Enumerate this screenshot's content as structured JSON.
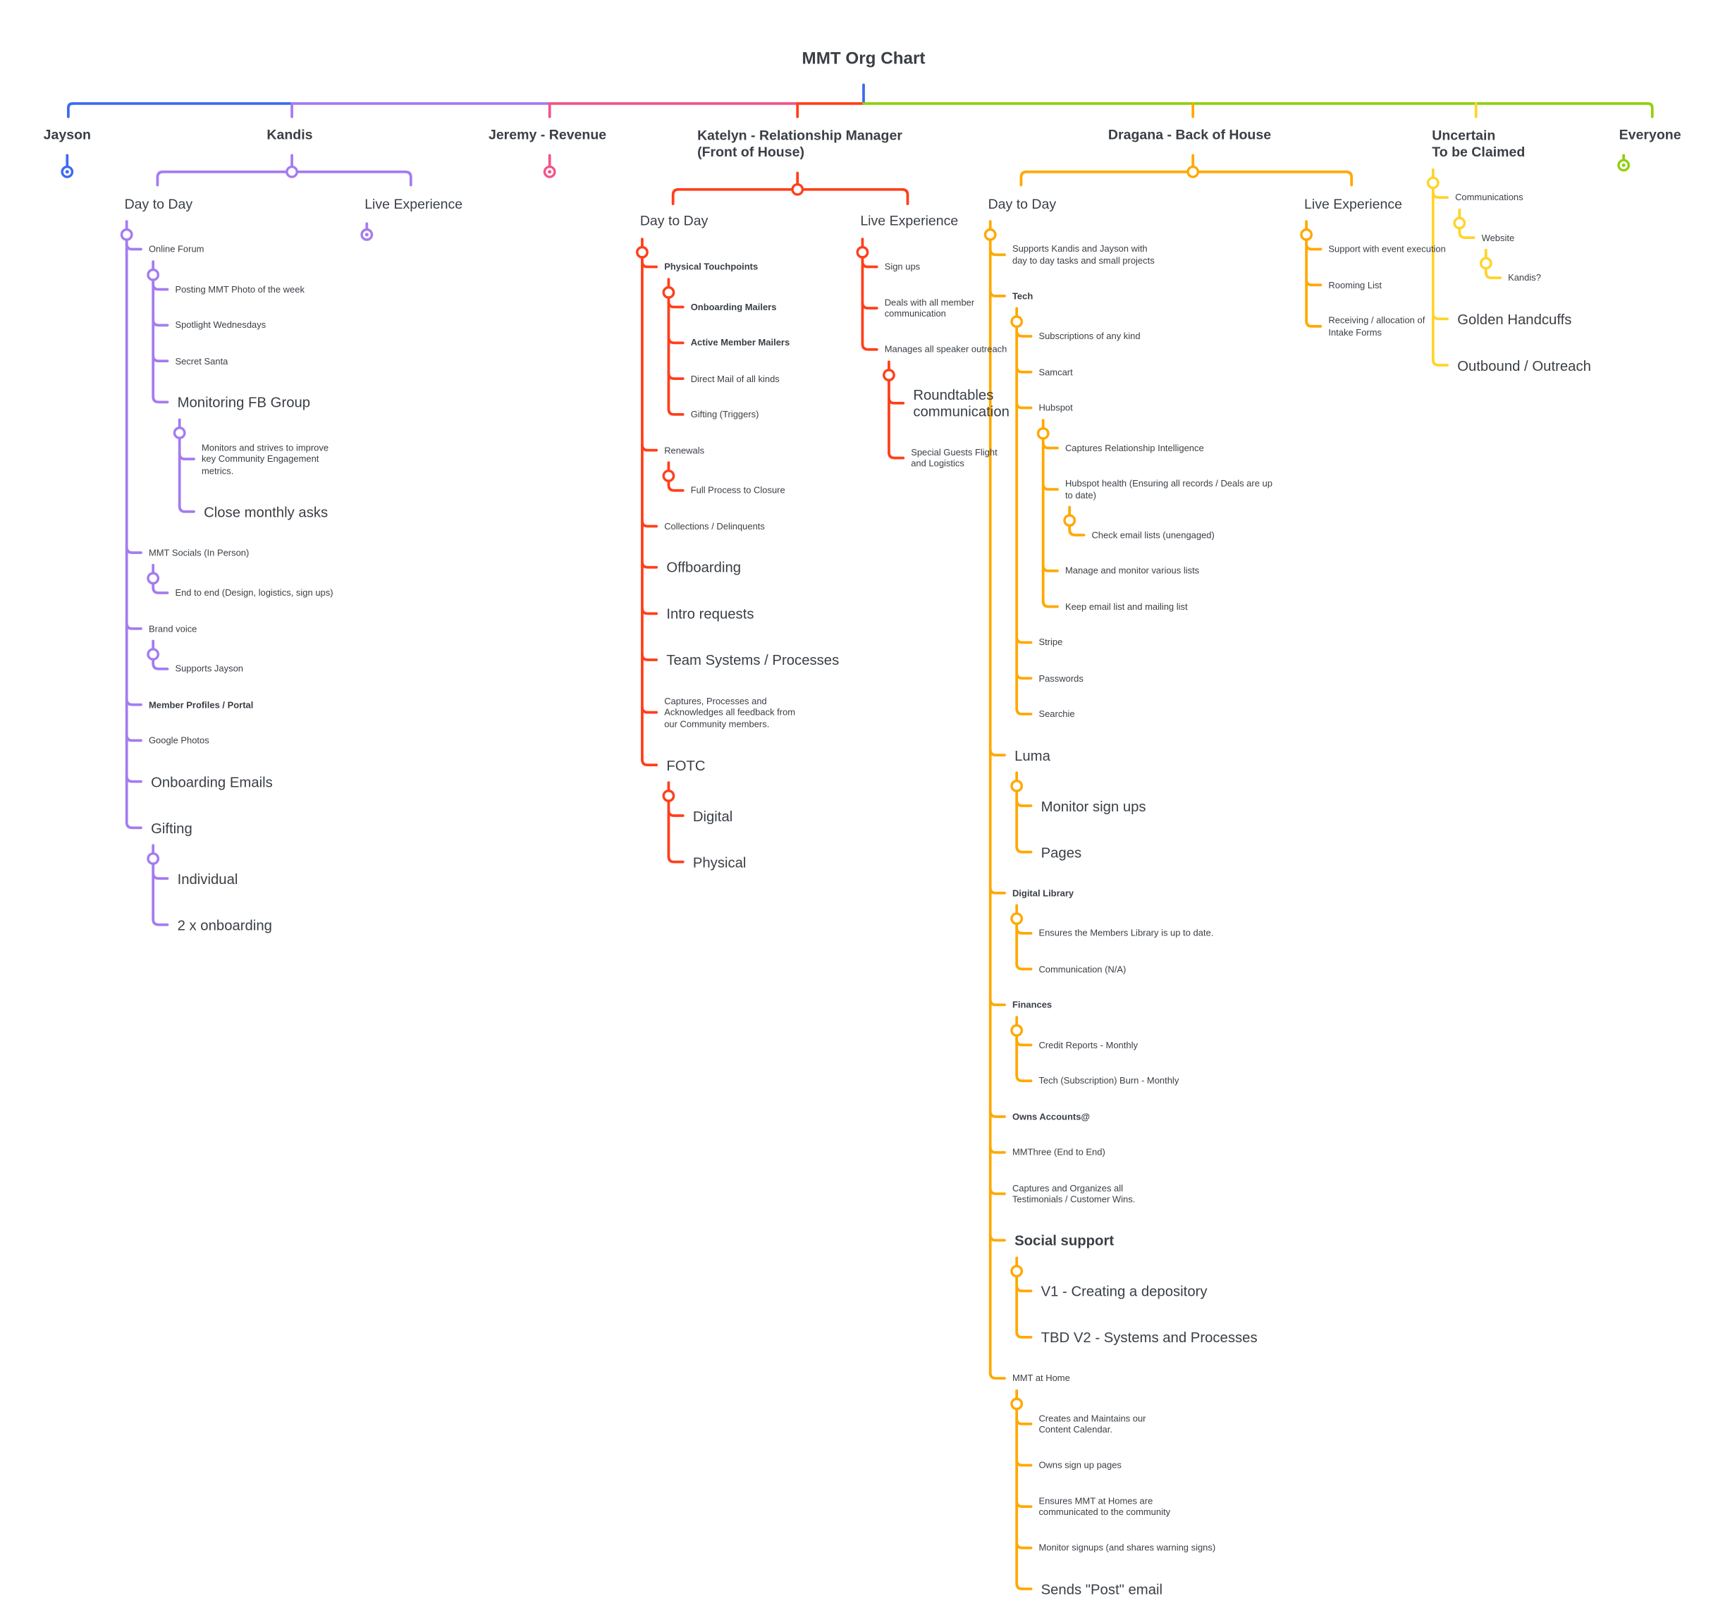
{
  "title": "MMT Org Chart",
  "colors": {
    "jayson": "#3d6af2",
    "kandis": "#a47cf0",
    "jeremy": "#f2558a",
    "katelyn": "#ff3f1a",
    "dragana": "#ffa800",
    "uncertain": "#ffd42a",
    "everyone": "#8ed10f",
    "text": "#3a3f45"
  },
  "columns": {
    "jayson": {
      "name": "Jayson"
    },
    "kandis": {
      "name": "Kandis",
      "day_to_day": {
        "label": "Day to Day",
        "items": [
          {
            "text": "Online Forum",
            "children": [
              {
                "text": "Posting MMT Photo of the week"
              },
              {
                "text": "Spotlight Wednesdays"
              },
              {
                "text": "Secret Santa"
              },
              {
                "text": "Monitoring FB Group",
                "size": "large",
                "children": [
                  {
                    "text": "Monitors and strives to improve\nkey Community Engagement\nmetrics."
                  },
                  {
                    "text": "Close monthly asks",
                    "size": "large"
                  }
                ]
              }
            ]
          },
          {
            "text": "MMT Socials (In Person)",
            "children": [
              {
                "text": "End to end (Design, logistics, sign ups)"
              }
            ]
          },
          {
            "text": "Brand voice",
            "children": [
              {
                "text": "Supports Jayson"
              }
            ]
          },
          {
            "text": "Member Profiles / Portal",
            "bold": true
          },
          {
            "text": "Google Photos"
          },
          {
            "text": "Onboarding Emails",
            "size": "large"
          },
          {
            "text": "Gifting",
            "size": "large",
            "children": [
              {
                "text": "Individual",
                "size": "large"
              },
              {
                "text": "2 x onboarding",
                "size": "large"
              }
            ]
          }
        ]
      },
      "live_experience": {
        "label": "Live Experience",
        "items": []
      }
    },
    "jeremy": {
      "name": "Jeremy - Revenue"
    },
    "katelyn": {
      "name": "Katelyn - Relationship Manager\n(Front of House)",
      "day_to_day": {
        "label": "Day to Day",
        "items": [
          {
            "text": "Physical Touchpoints",
            "bold": true,
            "children": [
              {
                "text": "Onboarding Mailers",
                "bold": true
              },
              {
                "text": "Active Member Mailers",
                "bold": true
              },
              {
                "text": "Direct Mail of all kinds"
              },
              {
                "text": "Gifting (Triggers)"
              }
            ]
          },
          {
            "text": "Renewals",
            "children": [
              {
                "text": "Full Process to Closure"
              }
            ]
          },
          {
            "text": "Collections / Delinquents"
          },
          {
            "text": "Offboarding",
            "size": "large"
          },
          {
            "text": "Intro requests",
            "size": "large"
          },
          {
            "text": "Team Systems / Processes",
            "size": "large"
          },
          {
            "text": "Captures, Processes and\nAcknowledges all feedback from\nour Community members."
          },
          {
            "text": "FOTC",
            "size": "large",
            "children": [
              {
                "text": "Digital",
                "size": "large"
              },
              {
                "text": "Physical",
                "size": "large"
              }
            ]
          }
        ]
      },
      "live_experience": {
        "label": "Live Experience",
        "items": [
          {
            "text": "Sign ups"
          },
          {
            "text": "Deals with all member communication"
          },
          {
            "text": "Manages all speaker outreach",
            "children": [
              {
                "text": "Roundtables communication",
                "size": "large"
              },
              {
                "text": "Special Guests Flight and Logistics"
              }
            ]
          }
        ]
      }
    },
    "dragana": {
      "name": "Dragana - Back of House",
      "day_to_day": {
        "label": "Day to Day",
        "items": [
          {
            "text": "Supports Kandis and Jayson with\nday to day tasks and small projects"
          },
          {
            "text": "Tech",
            "bold": true,
            "children": [
              {
                "text": "Subscriptions of any kind"
              },
              {
                "text": "Samcart"
              },
              {
                "text": "Hubspot",
                "children": [
                  {
                    "text": "Captures Relationship Intelligence"
                  },
                  {
                    "text": "Hubspot health (Ensuring all records / Deals are up\nto date)",
                    "children": [
                      {
                        "text": "Check email lists (unengaged)"
                      }
                    ]
                  },
                  {
                    "text": "Manage and monitor various lists"
                  },
                  {
                    "text": "Keep email list and mailing list"
                  }
                ]
              },
              {
                "text": "Stripe"
              },
              {
                "text": "Passwords"
              },
              {
                "text": "Searchie"
              }
            ]
          },
          {
            "text": "Luma",
            "size": "large",
            "children": [
              {
                "text": "Monitor sign ups",
                "size": "large"
              },
              {
                "text": "Pages",
                "size": "large"
              }
            ]
          },
          {
            "text": "Digital Library",
            "bold": true,
            "children": [
              {
                "text": "Ensures the Members Library is up to date."
              },
              {
                "text": "Communication (N/A)"
              }
            ]
          },
          {
            "text": "Finances",
            "bold": true,
            "children": [
              {
                "text": "Credit Reports - Monthly"
              },
              {
                "text": "Tech (Subscription) Burn - Monthly"
              }
            ]
          },
          {
            "text": "Owns Accounts@",
            "bold": true
          },
          {
            "text": "MMThree (End to End)"
          },
          {
            "text": "Captures and Organizes all\nTestimonials / Customer Wins."
          },
          {
            "text": "Social support",
            "size": "large",
            "bold": true,
            "children": [
              {
                "text": "V1 - Creating a depository",
                "size": "large"
              },
              {
                "text": "TBD V2 - Systems and Processes",
                "size": "large"
              }
            ]
          },
          {
            "text": "MMT at Home",
            "children": [
              {
                "text": "Creates and Maintains our\nContent Calendar."
              },
              {
                "text": "Owns sign up pages"
              },
              {
                "text": "Ensures MMT at Homes are\ncommunicated to the community"
              },
              {
                "text": "Monitor signups (and shares warning signs)"
              },
              {
                "text": "Sends \"Post\" email",
                "size": "large"
              }
            ]
          }
        ]
      },
      "live_experience": {
        "label": "Live Experience",
        "items": [
          {
            "text": "Support with event execution"
          },
          {
            "text": "Rooming List"
          },
          {
            "text": "Receiving / allocation of Intake Forms"
          }
        ]
      }
    },
    "uncertain": {
      "name": "Uncertain\nTo be Claimed",
      "items": [
        {
          "text": "Communications",
          "children": [
            {
              "text": "Website",
              "children": [
                {
                  "text": "Kandis?"
                }
              ]
            }
          ]
        },
        {
          "text": "Golden Handcuffs",
          "size": "large"
        },
        {
          "text": "Outbound / Outreach",
          "size": "large"
        }
      ]
    },
    "everyone": {
      "name": "Everyone"
    }
  }
}
